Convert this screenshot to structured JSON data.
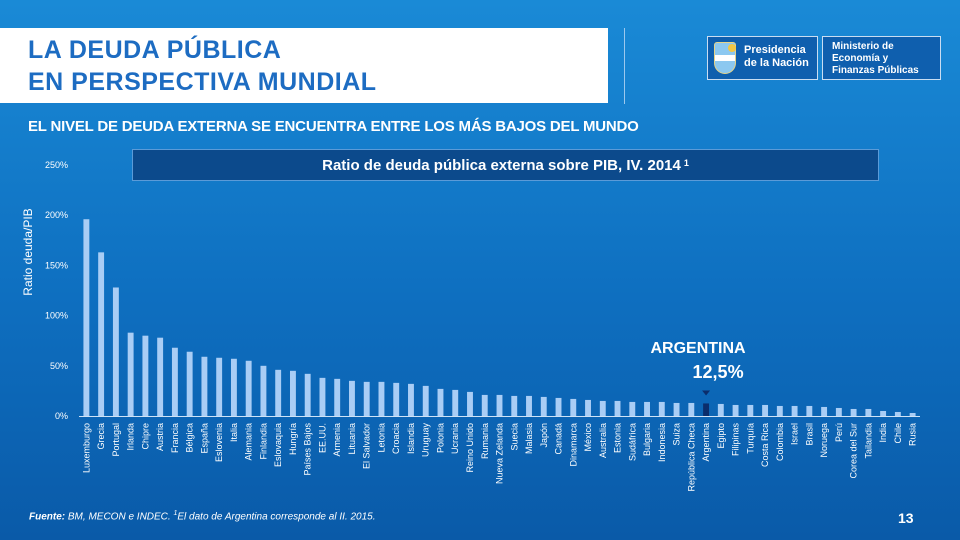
{
  "header": {
    "title_line1": "LA DEUDA PÚBLICA",
    "title_line2": "EN PERSPECTIVA MUNDIAL",
    "subtitle": "EL NIVEL DE DEUDA EXTERNA SE ENCUENTRA ENTRE LOS MÁS BAJOS DEL MUNDO"
  },
  "logos": {
    "presidencia_line1": "Presidencia",
    "presidencia_line2": "de la Nación",
    "ministerio_line1": "Ministerio de",
    "ministerio_line2": "Economía y",
    "ministerio_line3": "Finanzas Públicas"
  },
  "colors": {
    "bar": "#a9cdf5",
    "highlight": "#0b2d6b",
    "title_blue": "#1d6cc2"
  },
  "chart_data": {
    "type": "bar",
    "title": "Ratio de deuda pública externa sobre PIB, IV. 2014",
    "title_footnote": "1",
    "xlabel": "",
    "ylabel": "Ratio deuda/PIB",
    "ylim": [
      0,
      250
    ],
    "yticks": [
      0,
      50,
      100,
      150,
      200,
      250
    ],
    "ytick_labels": [
      "0%",
      "50%",
      "100%",
      "150%",
      "200%",
      "250%"
    ],
    "grid": false,
    "highlight_category": "Argentina",
    "categories": [
      "Luxemburgo",
      "Grecia",
      "Portugal",
      "Irlanda",
      "Chipre",
      "Austria",
      "Francia",
      "Bélgica",
      "España",
      "Eslovenia",
      "Italia",
      "Alemania",
      "Finlandia",
      "Eslovaquia",
      "Hungría",
      "Países Bajos",
      "EE.UU.",
      "Armenia",
      "Lituania",
      "El Salvador",
      "Letonia",
      "Croacia",
      "Islandia",
      "Uruguay",
      "Polonia",
      "Ucrania",
      "Reino Unido",
      "Rumania",
      "Nueva Zelanda",
      "Suecia",
      "Malasia",
      "Japón",
      "Canadá",
      "Dinamarca",
      "México",
      "Australia",
      "Estonia",
      "Sudáfrica",
      "Bulgaria",
      "Indonesia",
      "Suiza",
      "República Checa",
      "Argentina",
      "Egipto",
      "Filipinas",
      "Turquía",
      "Costa Rica",
      "Colombia",
      "Israel",
      "Brasil",
      "Noruega",
      "Perú",
      "Corea del Sur",
      "Tailandia",
      "India",
      "Chile",
      "Rusia"
    ],
    "values": [
      196,
      163,
      128,
      83,
      80,
      78,
      68,
      64,
      59,
      58,
      57,
      55,
      50,
      46,
      45,
      42,
      38,
      37,
      35,
      34,
      34,
      33,
      32,
      30,
      27,
      26,
      24,
      21,
      21,
      20,
      20,
      19,
      18,
      17,
      16,
      15,
      15,
      14,
      14,
      14,
      13,
      13,
      12.5,
      12,
      11,
      11,
      11,
      10,
      10,
      10,
      9,
      8,
      7,
      7,
      5,
      4,
      3
    ],
    "annotation_label": "ARGENTINA",
    "annotation_value": "12,5%"
  },
  "footer": {
    "source_label": "Fuente:",
    "source_text": " BM, MECON  e INDEC. ",
    "footnote_mark": "1",
    "footnote_text": "El dato de Argentina corresponde  al II. 2015.",
    "page_number": "13"
  }
}
